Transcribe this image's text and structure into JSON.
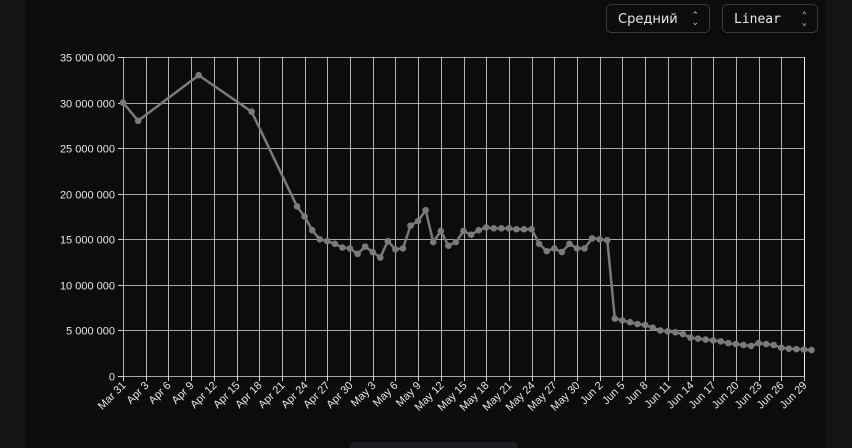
{
  "controls": {
    "aggregation_label": "Средний",
    "scale_label": "Linear",
    "chevron_glyph": "⌃⌄"
  },
  "colors": {
    "background": "#0c0c0f",
    "grid": "#ffffff",
    "line": "#7a7a7a",
    "tick_text": "#e6e6e6"
  },
  "chart_data": {
    "type": "line",
    "title": "",
    "xlabel": "",
    "ylabel": "",
    "ylim": [
      0,
      35000000
    ],
    "y_ticks": [
      0,
      5000000,
      10000000,
      15000000,
      20000000,
      25000000,
      30000000,
      35000000
    ],
    "y_tick_labels": [
      "0",
      "5 000 000",
      "10 000 000",
      "15 000 000",
      "20 000 000",
      "25 000 000",
      "30 000 000",
      "35 000 000"
    ],
    "x_tick_labels": [
      "Mar 31",
      "Apr 3",
      "Apr 6",
      "Apr 9",
      "Apr 12",
      "Apr 15",
      "Apr 18",
      "Apr 21",
      "Apr 24",
      "Apr 27",
      "Apr 30",
      "May 3",
      "May 6",
      "May 9",
      "May 12",
      "May 15",
      "May 18",
      "May 21",
      "May 24",
      "May 27",
      "May 30",
      "Jun 2",
      "Jun 5",
      "Jun 8",
      "Jun 11",
      "Jun 14",
      "Jun 17",
      "Jun 20",
      "Jun 23",
      "Jun 26",
      "Jun 29"
    ],
    "grid": true,
    "series": [
      {
        "x": [
          "Mar 31",
          "Apr 2",
          "Apr 10",
          "Apr 17",
          "Apr 23",
          "Apr 24",
          "Apr 25",
          "Apr 26",
          "Apr 27",
          "Apr 28",
          "Apr 29",
          "Apr 30",
          "May 1",
          "May 2",
          "May 3",
          "May 4",
          "May 5",
          "May 6",
          "May 7",
          "May 8",
          "May 9",
          "May 10",
          "May 11",
          "May 12",
          "May 13",
          "May 14",
          "May 15",
          "May 16",
          "May 17",
          "May 18",
          "May 19",
          "May 20",
          "May 21",
          "May 22",
          "May 23",
          "May 24",
          "May 25",
          "May 26",
          "May 27",
          "May 28",
          "May 29",
          "May 30",
          "May 31",
          "Jun 1",
          "Jun 2",
          "Jun 3",
          "Jun 4",
          "Jun 5",
          "Jun 6",
          "Jun 7",
          "Jun 8",
          "Jun 9",
          "Jun 10",
          "Jun 11",
          "Jun 12",
          "Jun 13",
          "Jun 14",
          "Jun 15",
          "Jun 16",
          "Jun 17",
          "Jun 18",
          "Jun 19",
          "Jun 20",
          "Jun 21",
          "Jun 22",
          "Jun 23",
          "Jun 24",
          "Jun 25",
          "Jun 26",
          "Jun 27",
          "Jun 28",
          "Jun 29",
          "Jun 30"
        ],
        "values": [
          30000000,
          28000000,
          33000000,
          29000000,
          18600000,
          17500000,
          16000000,
          15000000,
          14800000,
          14500000,
          14100000,
          14000000,
          13400000,
          14200000,
          13600000,
          13000000,
          14800000,
          13900000,
          14000000,
          16500000,
          17000000,
          18200000,
          14700000,
          15900000,
          14300000,
          14700000,
          15900000,
          15500000,
          16000000,
          16300000,
          16200000,
          16200000,
          16200000,
          16100000,
          16100000,
          16100000,
          14500000,
          13700000,
          14000000,
          13600000,
          14500000,
          14000000,
          14000000,
          15100000,
          15000000,
          14900000,
          6300000,
          6100000,
          5900000,
          5700000,
          5600000,
          5300000,
          5000000,
          4900000,
          4800000,
          4600000,
          4200000,
          4100000,
          4000000,
          3900000,
          3800000,
          3600000,
          3500000,
          3400000,
          3300000,
          3600000,
          3500000,
          3400000,
          3100000,
          3000000,
          2950000,
          2900000,
          2850000
        ]
      }
    ]
  }
}
